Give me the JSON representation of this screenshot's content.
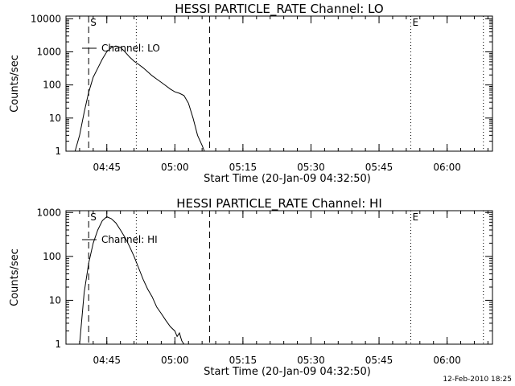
{
  "chart_data": [
    {
      "type": "line",
      "title": "HESSI PARTICLE_RATE Channel: LO",
      "xlabel": "Start Time (20-Jan-09 04:32:50)",
      "ylabel": "Counts/sec",
      "y_scale": "log",
      "xlim": [
        "04:36:00",
        "06:10:00"
      ],
      "ylim": [
        1,
        12000
      ],
      "xticks": [
        "04:45",
        "05:00",
        "05:15",
        "05:30",
        "05:45",
        "06:00"
      ],
      "yticks": [
        "1",
        "10",
        "100",
        "1000",
        "10000"
      ],
      "legend": "Channel: LO",
      "markers": [
        {
          "label": "S",
          "time": "04:41:00",
          "style": "dashed"
        },
        {
          "label": "",
          "time": "05:07:40",
          "style": "dashed"
        },
        {
          "label": "",
          "time": "04:51:30",
          "style": "dotted"
        },
        {
          "label": "E",
          "time": "05:52:00",
          "style": "dotted"
        },
        {
          "label": "",
          "time": "06:08:00",
          "style": "dotted"
        }
      ],
      "series": [
        {
          "x": [
            "04:38:00",
            "04:39:00",
            "04:40:00",
            "04:41:00",
            "04:42:00",
            "04:43:00",
            "04:44:00",
            "04:45:00",
            "04:46:00",
            "04:47:00",
            "04:48:00",
            "04:49:00",
            "04:50:00",
            "04:51:00",
            "04:52:00",
            "04:53:00",
            "04:54:00",
            "04:55:00",
            "04:56:00",
            "04:57:00",
            "04:58:00",
            "04:59:00",
            "05:00:00",
            "05:01:00",
            "05:02:00",
            "05:03:00",
            "05:04:00",
            "05:05:00",
            "05:06:00",
            "05:06:30"
          ],
          "values": [
            1,
            3,
            15,
            60,
            170,
            320,
            600,
            1000,
            1350,
            1500,
            1350,
            1000,
            700,
            520,
            420,
            330,
            250,
            190,
            150,
            120,
            95,
            75,
            62,
            56,
            48,
            28,
            10,
            3,
            1.5,
            1
          ]
        }
      ]
    },
    {
      "type": "line",
      "title": "HESSI PARTICLE_RATE Channel: HI",
      "xlabel": "Start Time (20-Jan-09 04:32:50)",
      "ylabel": "Counts/sec",
      "y_scale": "log",
      "xlim": [
        "04:36:00",
        "06:10:00"
      ],
      "ylim": [
        1,
        1100
      ],
      "xticks": [
        "04:45",
        "05:00",
        "05:15",
        "05:30",
        "05:45",
        "06:00"
      ],
      "yticks": [
        "1",
        "10",
        "100",
        "1000"
      ],
      "legend": "Channel: HI",
      "markers": [
        {
          "label": "S",
          "time": "04:41:00",
          "style": "dashed"
        },
        {
          "label": "",
          "time": "05:07:40",
          "style": "dashed"
        },
        {
          "label": "",
          "time": "04:51:30",
          "style": "dotted"
        },
        {
          "label": "E",
          "time": "05:52:00",
          "style": "dotted"
        },
        {
          "label": "",
          "time": "06:08:00",
          "style": "dotted"
        }
      ],
      "series": [
        {
          "x": [
            "04:39:00",
            "04:40:00",
            "04:41:00",
            "04:42:00",
            "04:43:00",
            "04:44:00",
            "04:45:00",
            "04:46:00",
            "04:47:00",
            "04:48:00",
            "04:49:00",
            "04:50:00",
            "04:51:00",
            "04:52:00",
            "04:53:00",
            "04:54:00",
            "04:55:00",
            "04:56:00",
            "04:57:00",
            "04:58:00",
            "04:59:00",
            "05:00:00",
            "05:00:30",
            "05:01:00",
            "05:01:30",
            "05:02:00"
          ],
          "values": [
            1,
            15,
            70,
            200,
            400,
            650,
            800,
            720,
            580,
            400,
            270,
            170,
            100,
            55,
            30,
            18,
            12,
            7,
            5,
            3.5,
            2.5,
            2,
            1.5,
            1.8,
            1.2,
            1
          ]
        }
      ]
    }
  ],
  "timestamp": "12-Feb-2010 18:25"
}
